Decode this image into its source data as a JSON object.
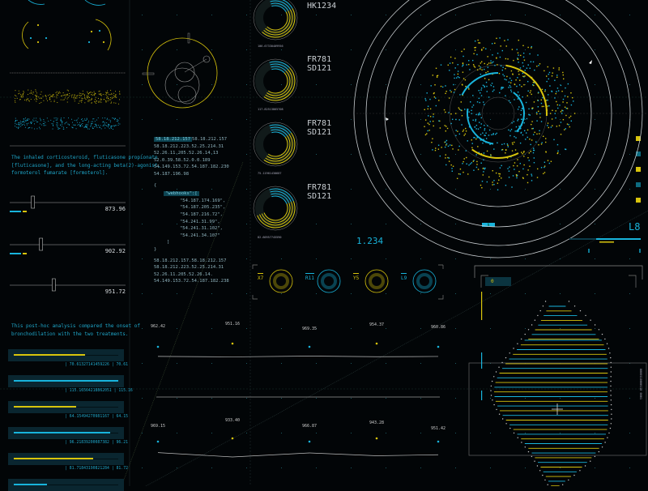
{
  "colors": {
    "cyan": "#18b4dc",
    "yellow": "#d8c40c",
    "bg": "#020507",
    "line": "#bfc6ca"
  },
  "left_panel": {
    "paragraph1": [
      "The inhaled corticosteroid, fluticasone propionate",
      "[fluticasone], and the long-acting beta(2)-agonist,",
      "formoterol fumarate [formoterol]."
    ],
    "sliders": [
      {
        "value": "873.96",
        "position": 0.2
      },
      {
        "value": "902.92",
        "position": 0.27
      },
      {
        "value": "951.72",
        "position": 0.38
      }
    ],
    "paragraph2": [
      "This post-hoc analysis compared the onset of",
      "bronchodilation with the two treatments."
    ],
    "bars": [
      {
        "color": "yellow",
        "fill": 0.17,
        "label": "| 70.61327141459226 | 70.61"
      },
      {
        "color": "cyan",
        "fill": 0.28,
        "label": "| 115.16564218862051 | 115.16"
      },
      {
        "color": "yellow",
        "fill": 0.15,
        "label": "| 64.15494270981167 | 64.15"
      },
      {
        "color": "cyan",
        "fill": 0.23,
        "label": "| 96.21839200087382 | 96.21"
      },
      {
        "color": "yellow",
        "fill": 0.19,
        "label": "| 81.71843190821284 | 81.72"
      },
      {
        "color": "cyan",
        "fill": 0.08,
        "label": ""
      }
    ]
  },
  "code": {
    "block1": [
      "58.18.212.157",
      "58.18.212.157",
      "58.18.212.223.52.25.214.31",
      "52.26.11.205.52.26.14.13",
      "52.0.39.58.52.0.0.189",
      "54.149.153.72.54.187.182.230",
      "54.187.196.98"
    ],
    "open": "{",
    "key": "\"webhooks\":[",
    "items": [
      "\"54.187.174.169\",",
      "\"54.187.205.235\",",
      "\"54.187.216.72\",",
      "\"54.241.31.99\",",
      "\"54.241.31.102\",",
      "\"54.241.34.107\""
    ],
    "close_arr": "]",
    "close": "}",
    "block2": [
      "58.18.212.157.58.18.212.157",
      "58.18.212.223.52.25.214.31",
      "52.26.11.205.52.26.14.",
      "54.149.153.72.54.187.182.238"
    ]
  },
  "donuts": [
    {
      "label": "106.67330409956",
      "cyan": 0.22,
      "yellow": 0.45
    },
    {
      "label": "117.82513865708",
      "cyan": 0.18,
      "yellow": 0.47
    },
    {
      "label": "75.11961430687",
      "cyan": 0.2,
      "yellow": 0.45
    },
    {
      "label": "82.60957745590",
      "cyan": 0.24,
      "yellow": 0.5
    }
  ],
  "flight_labels": [
    {
      "line1": "HK1234",
      "line2": ""
    },
    {
      "line1": "FR781",
      "line2": "SD121"
    },
    {
      "line1": "FR781",
      "line2": "SD121"
    },
    {
      "line1": "FR781",
      "line2": "SD121"
    }
  ],
  "readout": "1.234",
  "gauges": [
    {
      "label": "X7",
      "color": "yellow"
    },
    {
      "label": "R11",
      "color": "cyan"
    },
    {
      "label": "Y5",
      "color": "yellow"
    },
    {
      "label": "L9",
      "color": "cyan"
    }
  ],
  "radar": {
    "badge": "N",
    "level_label": "L8"
  },
  "helix": {
    "box_label": "0",
    "side_text": "0000110000110 0001"
  },
  "line_charts": [
    {
      "labels": [
        "962.42",
        "951.16",
        "969.35",
        "954.37",
        "960.86"
      ],
      "values": [
        962.42,
        951.16,
        969.35,
        954.37,
        960.86
      ],
      "point_colors": [
        "cyan",
        "yellow",
        "cyan",
        "yellow",
        "cyan"
      ]
    },
    {
      "labels": [
        "969.15",
        "933.40",
        "966.87",
        "943.28",
        "951.42"
      ],
      "values": [
        969.15,
        933.4,
        966.87,
        943.28,
        951.42
      ],
      "point_colors": [
        "cyan",
        "yellow",
        "cyan",
        "yellow",
        "cyan"
      ]
    }
  ],
  "side_markers": [
    "yellow",
    "cyan",
    "yellow",
    "cyan",
    "yellow"
  ]
}
